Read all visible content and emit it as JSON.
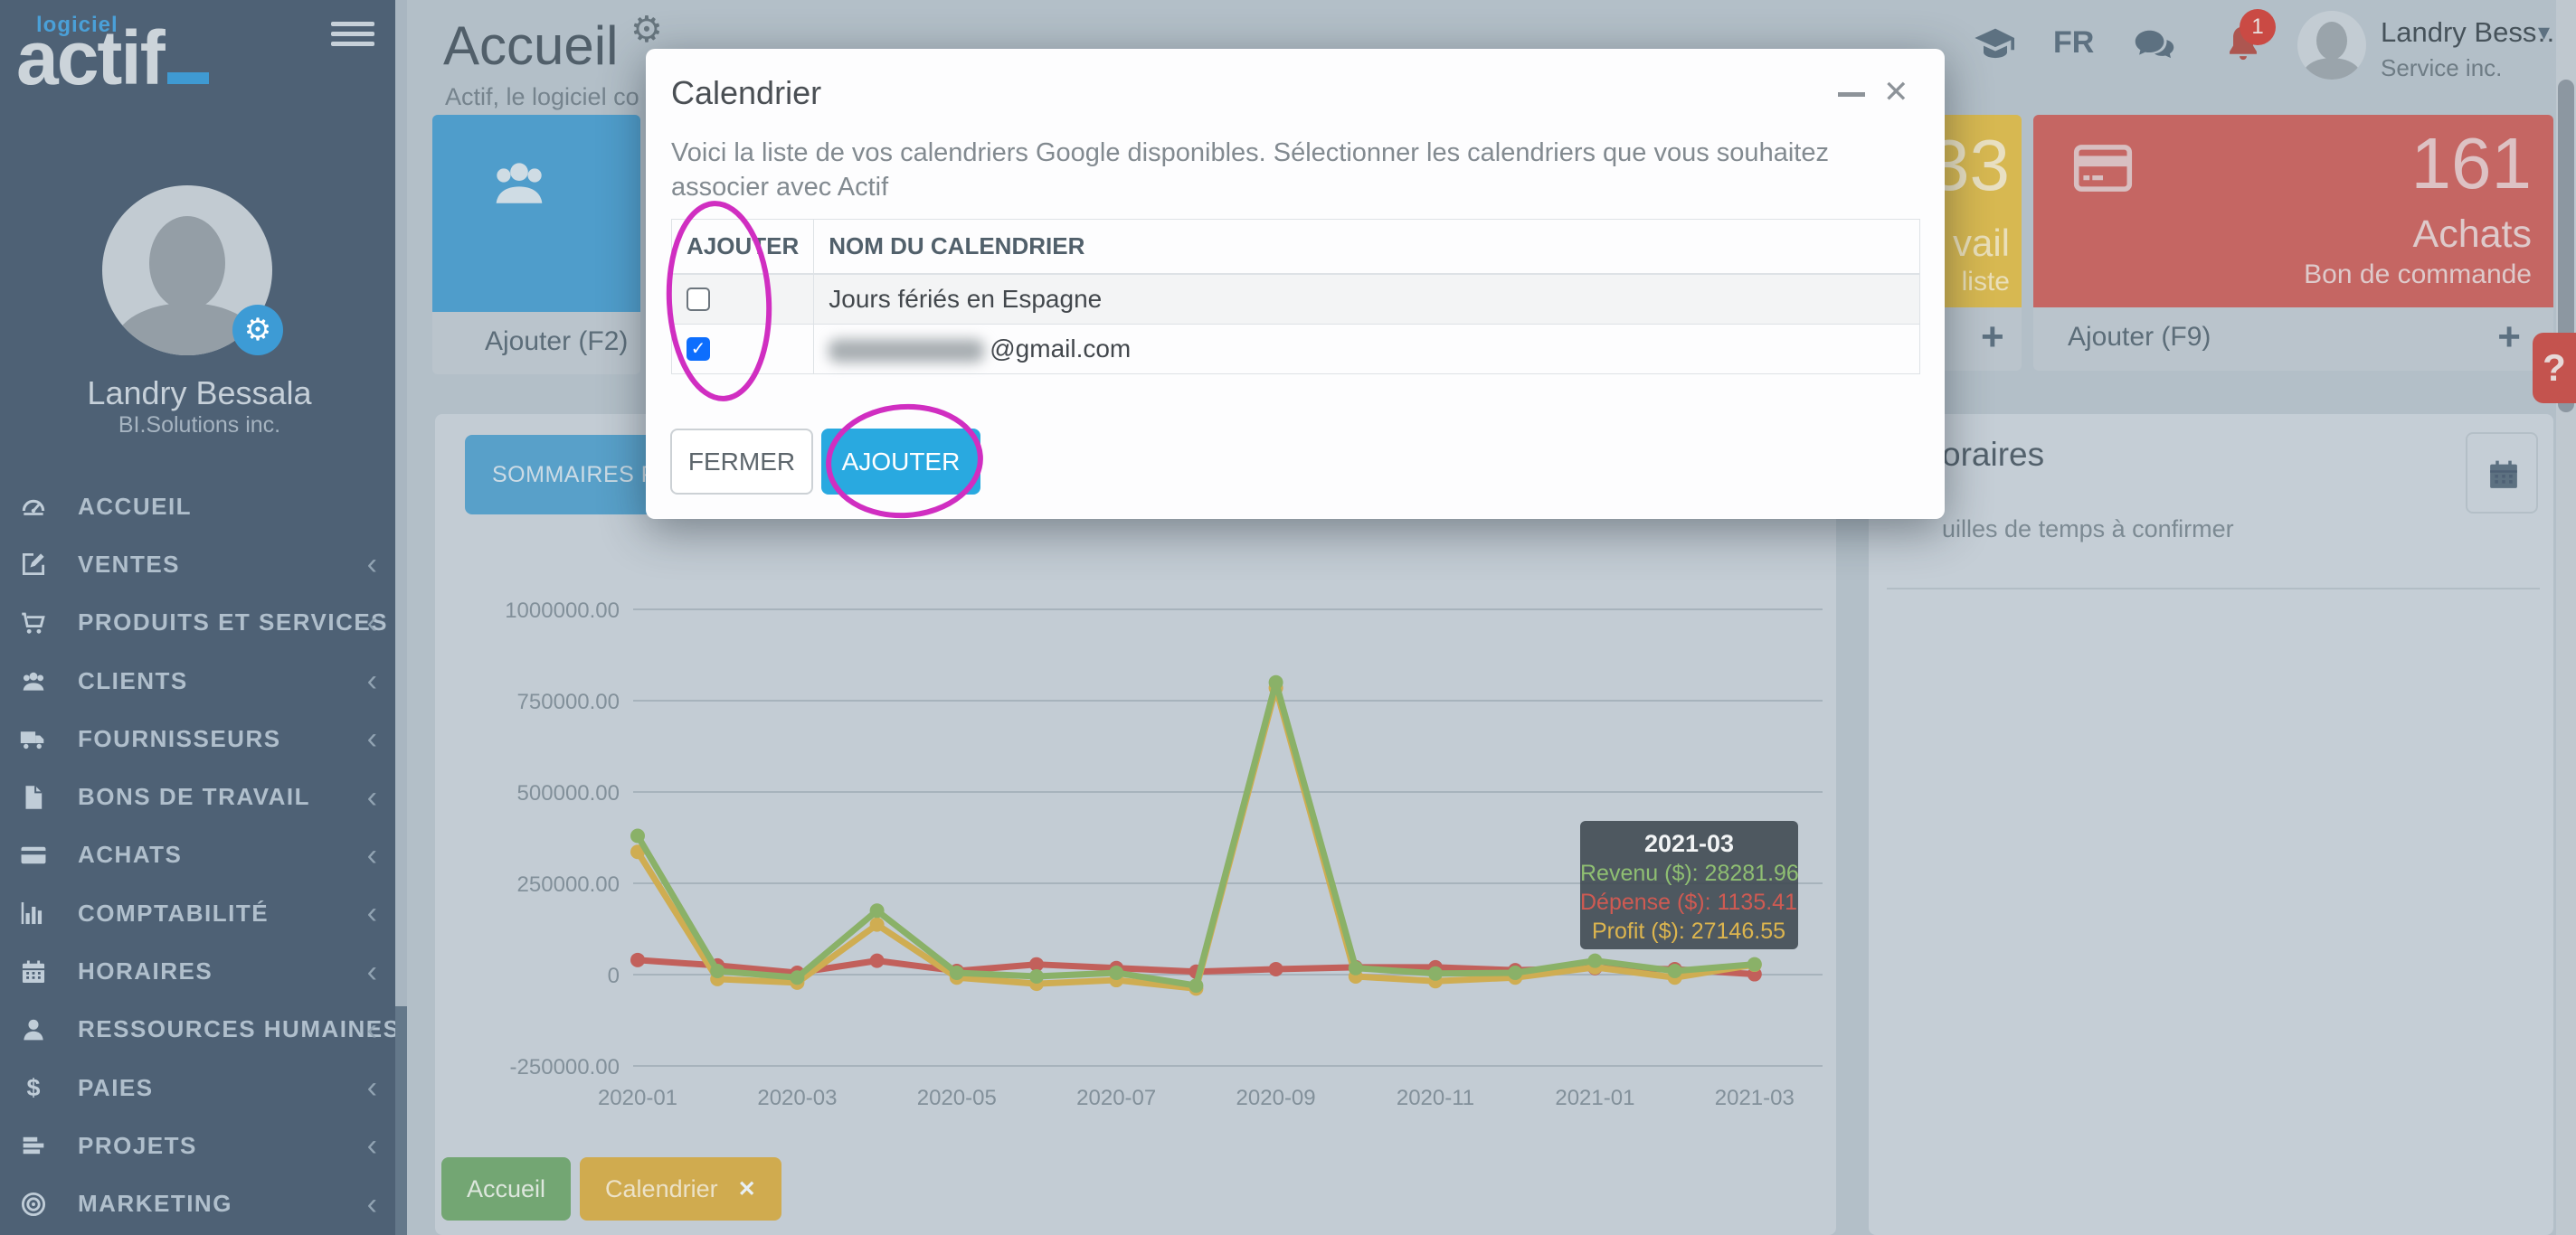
{
  "sidebar": {
    "logo_small": "logiciel",
    "logo_main": "actif",
    "user": {
      "name": "Landry Bessala",
      "company": "BI.Solutions inc."
    },
    "items": [
      {
        "label": "ACCUEIL",
        "icon": "dashboard-icon",
        "chevron": false
      },
      {
        "label": "VENTES",
        "icon": "pencil-square-icon",
        "chevron": true
      },
      {
        "label": "PRODUITS ET SERVICES",
        "icon": "cart-icon",
        "chevron": true
      },
      {
        "label": "CLIENTS",
        "icon": "users-icon",
        "chevron": true
      },
      {
        "label": "FOURNISSEURS",
        "icon": "truck-icon",
        "chevron": true
      },
      {
        "label": "BONS DE TRAVAIL",
        "icon": "file-icon",
        "chevron": true
      },
      {
        "label": "ACHATS",
        "icon": "credit-card-icon",
        "chevron": true
      },
      {
        "label": "COMPTABILITÉ",
        "icon": "bar-chart-icon",
        "chevron": true
      },
      {
        "label": "HORAIRES",
        "icon": "calendar-icon",
        "chevron": true
      },
      {
        "label": "RESSOURCES HUMAINES",
        "icon": "person-icon",
        "chevron": true
      },
      {
        "label": "PAIES",
        "icon": "dollar-icon",
        "chevron": true
      },
      {
        "label": "PROJETS",
        "icon": "tasks-icon",
        "chevron": true
      },
      {
        "label": "MARKETING",
        "icon": "bullseye-icon",
        "chevron": true
      }
    ]
  },
  "header": {
    "page_title": "Accueil",
    "page_subtitle": "Actif, le logiciel co",
    "language": "FR",
    "notification_count": "1",
    "user_name": "Landry Bess…",
    "user_company": "Service inc."
  },
  "cards": {
    "clients_add_label": "Ajouter (F2)",
    "workorders": {
      "number": "33",
      "line1_fragment": "vail",
      "line2_fragment": "liste"
    },
    "achats": {
      "number": "161",
      "title": "Achats",
      "subtitle": "Bon de commande",
      "add_label": "Ajouter (F9)"
    },
    "help_label": "?"
  },
  "panels": {
    "summary_tab_label": "SOMMAIRES PA",
    "horaires_title_fragment": "oraires",
    "horaires_subtitle_fragment": "uilles de temps à confirmer"
  },
  "bottom_tabs": [
    {
      "label": "Accueil",
      "closable": false,
      "color": "green"
    },
    {
      "label": "Calendrier",
      "closable": true,
      "color": "yellow"
    }
  ],
  "modal": {
    "title": "Calendrier",
    "description": "Voici la liste de vos calendriers Google disponibles. Sélectionner les calendriers que vous souhaitez associer avec Actif",
    "table": {
      "headers": [
        "AJOUTER",
        "NOM DU CALENDRIER"
      ],
      "rows": [
        {
          "checked": false,
          "name": "Jours fériés en Espagne",
          "redacted": false
        },
        {
          "checked": true,
          "name": "@gmail.com",
          "redacted": true
        }
      ]
    },
    "buttons": {
      "close": "FERMER",
      "add": "AJOUTER"
    }
  },
  "chart_data": {
    "type": "line",
    "x": [
      "2020-01",
      "2020-02",
      "2020-03",
      "2020-04",
      "2020-05",
      "2020-06",
      "2020-07",
      "2020-08",
      "2020-09",
      "2020-10",
      "2020-11",
      "2020-12",
      "2021-01",
      "2021-02",
      "2021-03"
    ],
    "x_tick_labels": [
      "2020-01",
      "2020-03",
      "2020-05",
      "2020-07",
      "2020-09",
      "2020-11",
      "2021-01",
      "2021-03"
    ],
    "y_ticks": [
      "1000000.00",
      "750000.00",
      "500000.00",
      "250000.00",
      "0",
      "-250000.00"
    ],
    "ylim": [
      -250000,
      1000000
    ],
    "grid": true,
    "series": [
      {
        "name": "Revenu ($)",
        "color": "#8ab168",
        "values": [
          380000,
          10000,
          -8000,
          175000,
          5000,
          -5000,
          5000,
          -30000,
          800000,
          18000,
          3000,
          5000,
          38000,
          10000,
          28281.96
        ]
      },
      {
        "name": "Dépense ($)",
        "color": "#c2605b",
        "values": [
          40000,
          25000,
          5000,
          38000,
          10000,
          28000,
          18000,
          8000,
          15000,
          20000,
          20000,
          12000,
          18000,
          15000,
          1135.41
        ]
      },
      {
        "name": "Profit ($)",
        "color": "#cfad52",
        "values": [
          336000,
          -12000,
          -22000,
          137000,
          -8000,
          -25000,
          -15000,
          -38000,
          785000,
          -5000,
          -18000,
          -8000,
          20000,
          -8000,
          27146.55
        ]
      }
    ],
    "tooltip": {
      "title": "2021-03",
      "lines": [
        {
          "label": "Revenu ($)",
          "value": "28281.96",
          "color": "#8fbf72"
        },
        {
          "label": "Dépense ($)",
          "value": "1135.41",
          "color": "#cf5a52"
        },
        {
          "label": "Profit ($)",
          "value": "27146.55",
          "color": "#ddb54e"
        }
      ]
    }
  },
  "colors": {
    "brand_blue": "#29a9e0",
    "sidebar_bg": "#4e6175",
    "annotation_magenta": "#d02ec1",
    "card_yellow": "#d7b851",
    "card_red": "#c56663",
    "card_blue": "#4f9dcb",
    "checkbox_checked": "#0d6efd"
  }
}
